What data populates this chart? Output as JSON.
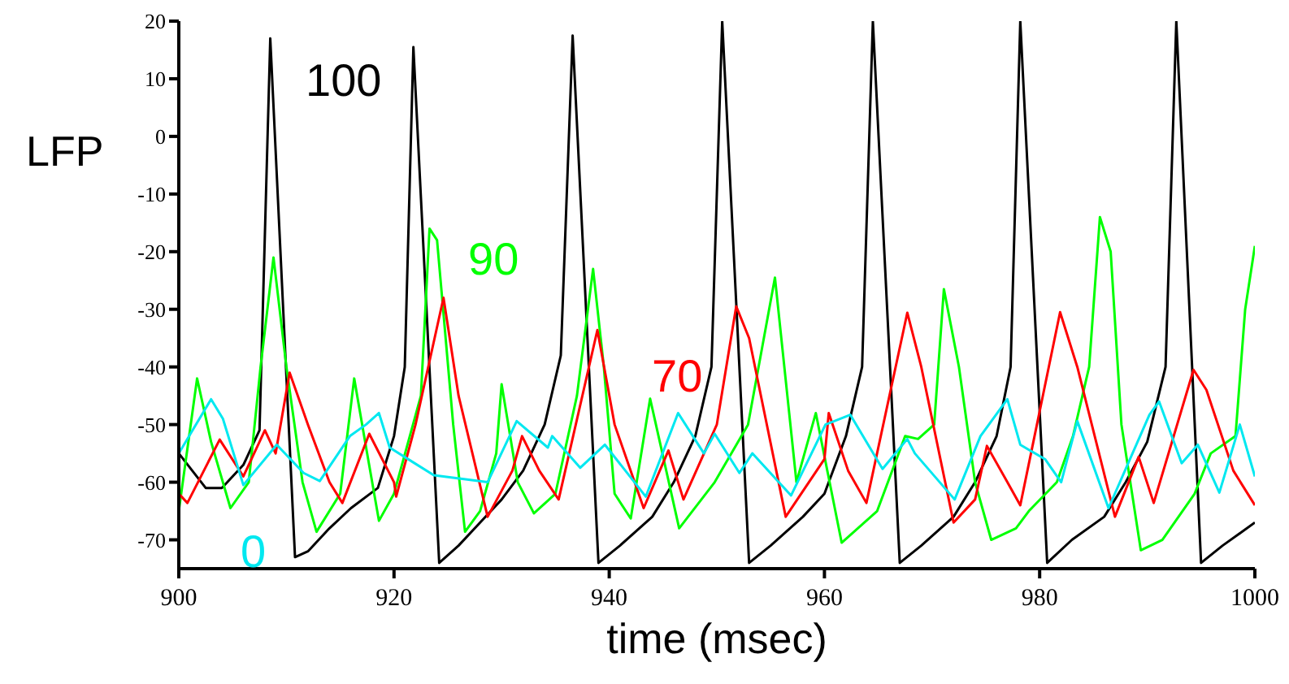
{
  "chart_data": {
    "type": "line",
    "xlabel": "time (msec)",
    "ylabel": "LFP",
    "xlim": [
      900,
      1000
    ],
    "xticks": [
      900,
      920,
      940,
      960,
      980,
      1000
    ],
    "ylim": [
      -75,
      20
    ],
    "yticks": [
      -70,
      -60,
      -50,
      -40,
      -30,
      -20,
      -10,
      0,
      10,
      20
    ],
    "grid": false,
    "marker": "none",
    "line_style": "solid",
    "series": [
      {
        "name": "100",
        "color": "#000000",
        "x": [
          900,
          902.5,
          904,
          906,
          907.5,
          908.5,
          910.8,
          912,
          914,
          916,
          918.5,
          920,
          921,
          921.8,
          924.2,
          926,
          928,
          930,
          932,
          934,
          935.5,
          936.6,
          939,
          941,
          944,
          946,
          948,
          949.5,
          950.5,
          953,
          955,
          958,
          960,
          962,
          963.5,
          964.5,
          967,
          969,
          972,
          974,
          976,
          977.3,
          978.2,
          980.7,
          983,
          986,
          988,
          990,
          991.7,
          992.7,
          995,
          997,
          1000
        ],
        "values": [
          -55,
          -61,
          -61,
          -57,
          -51,
          17,
          -73,
          -72,
          -68,
          -64.5,
          -61,
          -52,
          -40,
          15.5,
          -74,
          -71,
          -67,
          -63,
          -58,
          -50,
          -38,
          17.5,
          -74,
          -71,
          -66,
          -60,
          -52,
          -40,
          20,
          -74,
          -71,
          -66,
          -62,
          -52,
          -40,
          20,
          -74,
          -71,
          -66,
          -60,
          -52,
          -40,
          20,
          -74,
          -70,
          -66,
          -60,
          -53,
          -40,
          20,
          -74,
          -71,
          -67
        ]
      },
      {
        "name": "90",
        "color": "#00ff00",
        "x": [
          900,
          901.7,
          903,
          904.8,
          906.5,
          907.6,
          908.8,
          910,
          911.5,
          912.8,
          915,
          916.3,
          917.5,
          918.6,
          920,
          922.5,
          923.3,
          924,
          925.5,
          926.6,
          928,
          929.5,
          930,
          931.5,
          933,
          935,
          937,
          938.5,
          939.5,
          940.5,
          942,
          943.8,
          946.5,
          949.8,
          952.9,
          955.4,
          957.4,
          959.2,
          961.6,
          964.9,
          967.5,
          968.7,
          970.2,
          971.1,
          972.5,
          974,
          975.5,
          977.8,
          979,
          981.6,
          983.1,
          984.6,
          985.6,
          986.6,
          987.6,
          989.4,
          991.4,
          994.4,
          995.9,
          998.2,
          999.1,
          1000
        ],
        "values": [
          -65,
          -42,
          -53,
          -64.5,
          -60,
          -40,
          -21,
          -40,
          -60,
          -68.6,
          -62,
          -42,
          -55,
          -66.7,
          -62,
          -45,
          -16,
          -18,
          -50,
          -68.6,
          -65,
          -55,
          -43,
          -60,
          -65.4,
          -62,
          -45,
          -23,
          -40,
          -62,
          -66.3,
          -45.5,
          -68,
          -60,
          -50,
          -24.5,
          -60,
          -48,
          -70.5,
          -65,
          -52,
          -52.5,
          -50,
          -26.5,
          -40,
          -60,
          -70,
          -68,
          -65,
          -60,
          -52,
          -40,
          -14,
          -20,
          -50,
          -71.8,
          -70,
          -62,
          -55,
          -52,
          -30,
          -19
        ]
      },
      {
        "name": "70",
        "color": "#ff0000",
        "x": [
          900,
          900.8,
          903.8,
          906,
          907.5,
          908,
          909,
          910.3,
          912,
          914,
          915.2,
          917.7,
          920,
          920.2,
          922,
          924.6,
          926,
          928.7,
          931,
          931.9,
          933.5,
          935.3,
          938.9,
          940.5,
          943.2,
          945.5,
          946.9,
          950,
          951.8,
          953,
          956.4,
          960,
          960.4,
          962.2,
          963.9,
          967.7,
          969,
          972,
          974,
          975.1,
          977,
          978.2,
          981.9,
          983.5,
          987,
          989.2,
          990.6,
          994.3,
          995.5,
          998,
          1000
        ],
        "values": [
          -62,
          -63.6,
          -52.6,
          -59,
          -53,
          -51,
          -55,
          -41,
          -50,
          -60,
          -63.6,
          -51.6,
          -60,
          -62.5,
          -50,
          -28,
          -45,
          -66,
          -58,
          -52,
          -58,
          -63,
          -33.6,
          -50,
          -64.5,
          -54.5,
          -63,
          -50,
          -29.5,
          -35,
          -66,
          -56,
          -48,
          -58,
          -63.6,
          -30.6,
          -40,
          -67,
          -63,
          -53.7,
          -60,
          -64,
          -30.5,
          -40,
          -66,
          -55.6,
          -63.6,
          -40.5,
          -44,
          -58,
          -64
        ]
      },
      {
        "name": "0",
        "color": "#00e8f0",
        "x": [
          900,
          903,
          904.1,
          906,
          909.1,
          911.6,
          913.1,
          915.9,
          917.4,
          918.6,
          919.6,
          923.7,
          928.7,
          931.4,
          934.3,
          934.7,
          937.3,
          939.6,
          943.4,
          946.4,
          948.8,
          949.8,
          952.1,
          953.3,
          956.9,
          960.1,
          962.4,
          965.4,
          967.7,
          968.4,
          972.1,
          974.5,
          977,
          978.2,
          980.5,
          982,
          983.5,
          986.4,
          990.2,
          991.1,
          993.2,
          994.7,
          996.7,
          998.6,
          1000
        ],
        "values": [
          -55,
          -45.6,
          -49,
          -60.5,
          -53.5,
          -58.4,
          -59.8,
          -52,
          -50,
          -48,
          -54,
          -58.8,
          -60,
          -49.4,
          -54,
          -52,
          -57.5,
          -53.5,
          -62.5,
          -48,
          -55,
          -51.6,
          -58.4,
          -55,
          -62.3,
          -50,
          -48.3,
          -57.7,
          -52.5,
          -55,
          -63,
          -52,
          -45.6,
          -53.5,
          -56,
          -60,
          -49.4,
          -64.5,
          -48.3,
          -46,
          -56.7,
          -53.5,
          -61.8,
          -50,
          -59
        ]
      }
    ]
  }
}
